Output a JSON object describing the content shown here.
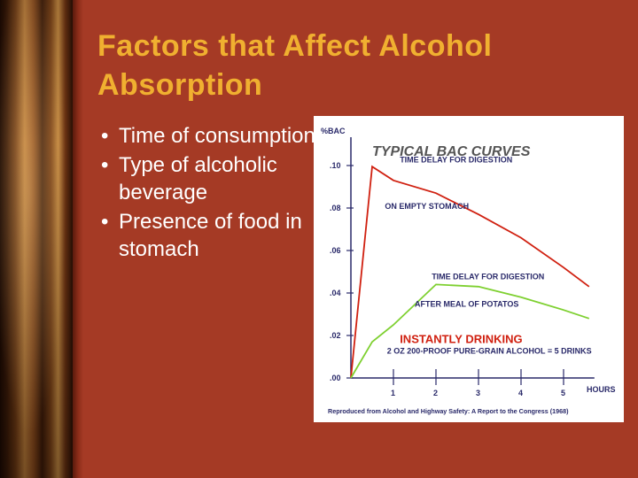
{
  "slide": {
    "title": "Factors that Affect Alcohol Absorption",
    "bullets": [
      "Time of consumption",
      "Type of alcoholic beverage",
      "Presence of food in stomach"
    ],
    "bullet_symbol": "•",
    "colors": {
      "background": "#a53a25",
      "title": "#f0b030",
      "text": "#ffffff"
    }
  },
  "chart_data": {
    "type": "line",
    "title": "TYPICAL BAC CURVES",
    "ylabel": "%BAC",
    "xlabel": "HOURS",
    "ylim": [
      0,
      0.11
    ],
    "xlim": [
      0,
      5.6
    ],
    "y_ticks": [
      0.0,
      0.02,
      0.04,
      0.06,
      0.08,
      0.1
    ],
    "y_tick_labels": [
      ".00",
      ".02",
      ".04",
      ".06",
      ".08",
      ".10"
    ],
    "x_ticks": [
      1,
      2,
      3,
      4,
      5
    ],
    "x_tick_labels": [
      "1",
      "2",
      "3",
      "4",
      "5"
    ],
    "series": [
      {
        "color": "#d02010",
        "points": [
          [
            0,
            0.0
          ],
          [
            0.5,
            0.0995
          ],
          [
            1.0,
            0.093
          ],
          [
            2.0,
            0.087
          ],
          [
            3.0,
            0.077
          ],
          [
            4.0,
            0.066
          ],
          [
            5.0,
            0.052
          ],
          [
            5.6,
            0.043
          ]
        ]
      },
      {
        "color": "#7ed030",
        "points": [
          [
            0,
            0.0
          ],
          [
            0.5,
            0.017
          ],
          [
            1.0,
            0.025
          ],
          [
            2.0,
            0.044
          ],
          [
            3.0,
            0.043
          ],
          [
            4.0,
            0.038
          ],
          [
            5.0,
            0.032
          ],
          [
            5.6,
            0.028
          ]
        ]
      }
    ],
    "annotations": [
      {
        "text": "TIME DELAY FOR DIGESTION",
        "x": 1.15,
        "y": 0.1015,
        "color": "#2a2a6a"
      },
      {
        "text": "ON EMPTY STOMACH",
        "x": 0.8,
        "y": 0.0795,
        "color": "#2a2a6a"
      },
      {
        "text": "TIME DELAY FOR DIGESTION",
        "x": 1.9,
        "y": 0.0465,
        "color": "#2a2a6a"
      },
      {
        "text": "AFTER MEAL OF POTATOS",
        "x": 1.5,
        "y": 0.0335,
        "color": "#2a2a6a"
      },
      {
        "text": "INSTANTLY DRINKING",
        "x": 1.15,
        "y": 0.0165,
        "color": "#d02010",
        "big": true
      },
      {
        "text": "2 OZ 200-PROOF PURE-GRAIN ALCOHOL = 5 DRINKS",
        "x": 0.85,
        "y": 0.0115,
        "color": "#2a2a6a"
      }
    ],
    "source": "Reproduced from Alcohol and Highway Safety: A Report to the Congress (1968)",
    "grid": false,
    "legend": "none"
  }
}
